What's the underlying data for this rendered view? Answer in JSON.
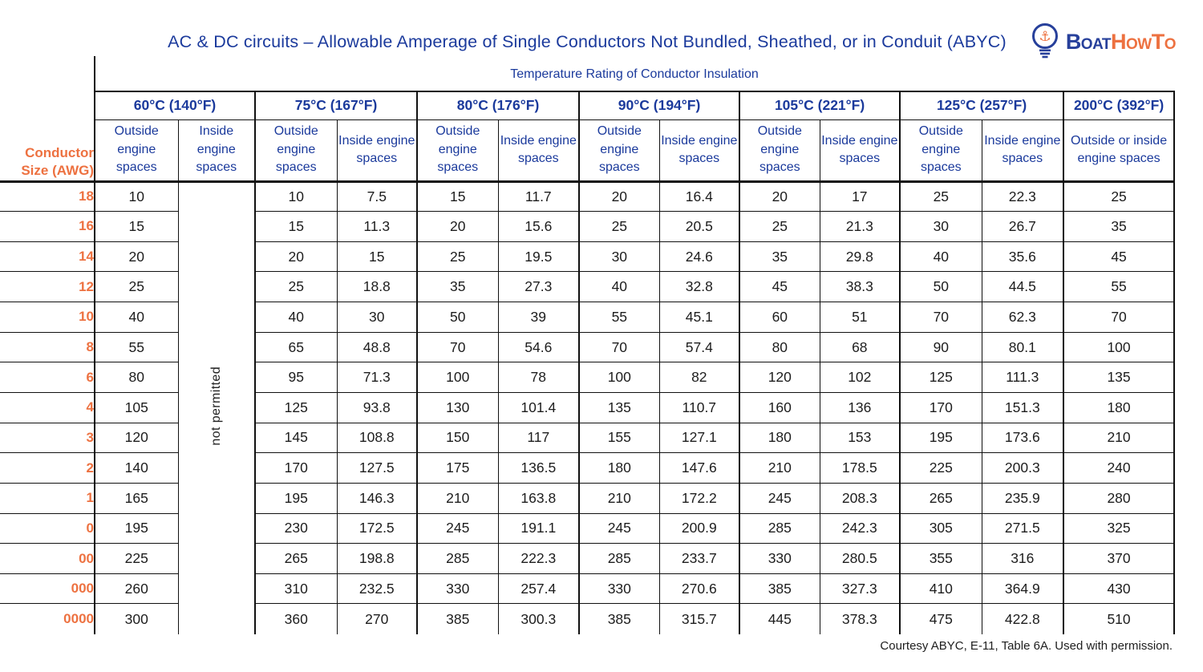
{
  "title": "AC & DC circuits – Allowable Amperage of Single Conductors Not Bundled, Sheathed, or in Conduit (ABYC)",
  "logo": {
    "word1": "Boat",
    "word2": "HowTo"
  },
  "colors": {
    "navy": "#1b3a9c",
    "orange": "#ed7140",
    "grid": "#111111"
  },
  "footer": "Courtesy ABYC, E-11, Table 6A. Used with permission.",
  "chart_data": {
    "type": "table",
    "caption": "Temperature Rating of Conductor Insulation",
    "row_header": "Conductor Size (AWG)",
    "not_permitted_label": "not permitted",
    "temp_groups": [
      {
        "label": "60°C (140°F)",
        "cols": [
          "Outside engine spaces",
          "Inside engine spaces"
        ]
      },
      {
        "label": "75°C (167°F)",
        "cols": [
          "Outside engine spaces",
          "Inside engine spaces"
        ]
      },
      {
        "label": "80°C (176°F)",
        "cols": [
          "Outside engine spaces",
          "Inside engine spaces"
        ]
      },
      {
        "label": "90°C (194°F)",
        "cols": [
          "Outside engine spaces",
          "Inside engine spaces"
        ]
      },
      {
        "label": "105°C (221°F)",
        "cols": [
          "Outside engine spaces",
          "Inside engine spaces"
        ]
      },
      {
        "label": "125°C (257°F)",
        "cols": [
          "Outside engine spaces",
          "Inside engine spaces"
        ]
      },
      {
        "label": "200°C (392°F)",
        "cols": [
          "Outside or inside engine spaces"
        ]
      }
    ],
    "rows": [
      {
        "awg": "18",
        "values": [
          "10",
          null,
          "10",
          "7.5",
          "15",
          "11.7",
          "20",
          "16.4",
          "20",
          "17",
          "25",
          "22.3",
          "25"
        ]
      },
      {
        "awg": "16",
        "values": [
          "15",
          null,
          "15",
          "11.3",
          "20",
          "15.6",
          "25",
          "20.5",
          "25",
          "21.3",
          "30",
          "26.7",
          "35"
        ]
      },
      {
        "awg": "14",
        "values": [
          "20",
          null,
          "20",
          "15",
          "25",
          "19.5",
          "30",
          "24.6",
          "35",
          "29.8",
          "40",
          "35.6",
          "45"
        ]
      },
      {
        "awg": "12",
        "values": [
          "25",
          null,
          "25",
          "18.8",
          "35",
          "27.3",
          "40",
          "32.8",
          "45",
          "38.3",
          "50",
          "44.5",
          "55"
        ]
      },
      {
        "awg": "10",
        "values": [
          "40",
          null,
          "40",
          "30",
          "50",
          "39",
          "55",
          "45.1",
          "60",
          "51",
          "70",
          "62.3",
          "70"
        ]
      },
      {
        "awg": "8",
        "values": [
          "55",
          null,
          "65",
          "48.8",
          "70",
          "54.6",
          "70",
          "57.4",
          "80",
          "68",
          "90",
          "80.1",
          "100"
        ]
      },
      {
        "awg": "6",
        "values": [
          "80",
          null,
          "95",
          "71.3",
          "100",
          "78",
          "100",
          "82",
          "120",
          "102",
          "125",
          "111.3",
          "135"
        ]
      },
      {
        "awg": "4",
        "values": [
          "105",
          null,
          "125",
          "93.8",
          "130",
          "101.4",
          "135",
          "110.7",
          "160",
          "136",
          "170",
          "151.3",
          "180"
        ]
      },
      {
        "awg": "3",
        "values": [
          "120",
          null,
          "145",
          "108.8",
          "150",
          "117",
          "155",
          "127.1",
          "180",
          "153",
          "195",
          "173.6",
          "210"
        ]
      },
      {
        "awg": "2",
        "values": [
          "140",
          null,
          "170",
          "127.5",
          "175",
          "136.5",
          "180",
          "147.6",
          "210",
          "178.5",
          "225",
          "200.3",
          "240"
        ]
      },
      {
        "awg": "1",
        "values": [
          "165",
          null,
          "195",
          "146.3",
          "210",
          "163.8",
          "210",
          "172.2",
          "245",
          "208.3",
          "265",
          "235.9",
          "280"
        ]
      },
      {
        "awg": "0",
        "values": [
          "195",
          null,
          "230",
          "172.5",
          "245",
          "191.1",
          "245",
          "200.9",
          "285",
          "242.3",
          "305",
          "271.5",
          "325"
        ]
      },
      {
        "awg": "00",
        "values": [
          "225",
          null,
          "265",
          "198.8",
          "285",
          "222.3",
          "285",
          "233.7",
          "330",
          "280.5",
          "355",
          "316",
          "370"
        ]
      },
      {
        "awg": "000",
        "values": [
          "260",
          null,
          "310",
          "232.5",
          "330",
          "257.4",
          "330",
          "270.6",
          "385",
          "327.3",
          "410",
          "364.9",
          "430"
        ]
      },
      {
        "awg": "0000",
        "values": [
          "300",
          null,
          "360",
          "270",
          "385",
          "300.3",
          "385",
          "315.7",
          "445",
          "378.3",
          "475",
          "422.8",
          "510"
        ]
      }
    ]
  }
}
